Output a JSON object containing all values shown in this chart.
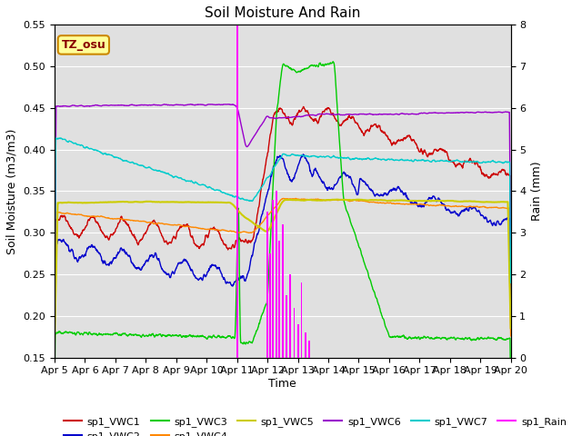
{
  "title": "Soil Moisture And Rain",
  "xlabel": "Time",
  "ylabel_left": "Soil Moisture (m3/m3)",
  "ylabel_right": "Rain (mm)",
  "annotation": "TZ_osu",
  "ylim_left": [
    0.15,
    0.55
  ],
  "ylim_right": [
    0.0,
    8.0
  ],
  "yticks_left": [
    0.15,
    0.2,
    0.25,
    0.3,
    0.35,
    0.4,
    0.45,
    0.5,
    0.55
  ],
  "yticks_right": [
    0.0,
    1.0,
    2.0,
    3.0,
    4.0,
    5.0,
    6.0,
    7.0,
    8.0
  ],
  "xtick_labels": [
    "Apr 5",
    "Apr 6",
    "Apr 7",
    "Apr 8",
    "Apr 9",
    "Apr 10",
    "Apr 11",
    "Apr 12",
    "Apr 13",
    "Apr 14",
    "Apr 15",
    "Apr 16",
    "Apr 17",
    "Apr 18",
    "Apr 19",
    "Apr 20"
  ],
  "colors": {
    "vwc1": "#cc0000",
    "vwc2": "#0000cc",
    "vwc3": "#00cc00",
    "vwc4": "#ff8800",
    "vwc5": "#cccc00",
    "vwc6": "#9900cc",
    "vwc7": "#00cccc",
    "rain": "#ff00ff"
  },
  "bg_color": "#e0e0e0",
  "annotation_bg": "#ffff99",
  "annotation_border": "#cc8800",
  "annotation_text_color": "#880000"
}
